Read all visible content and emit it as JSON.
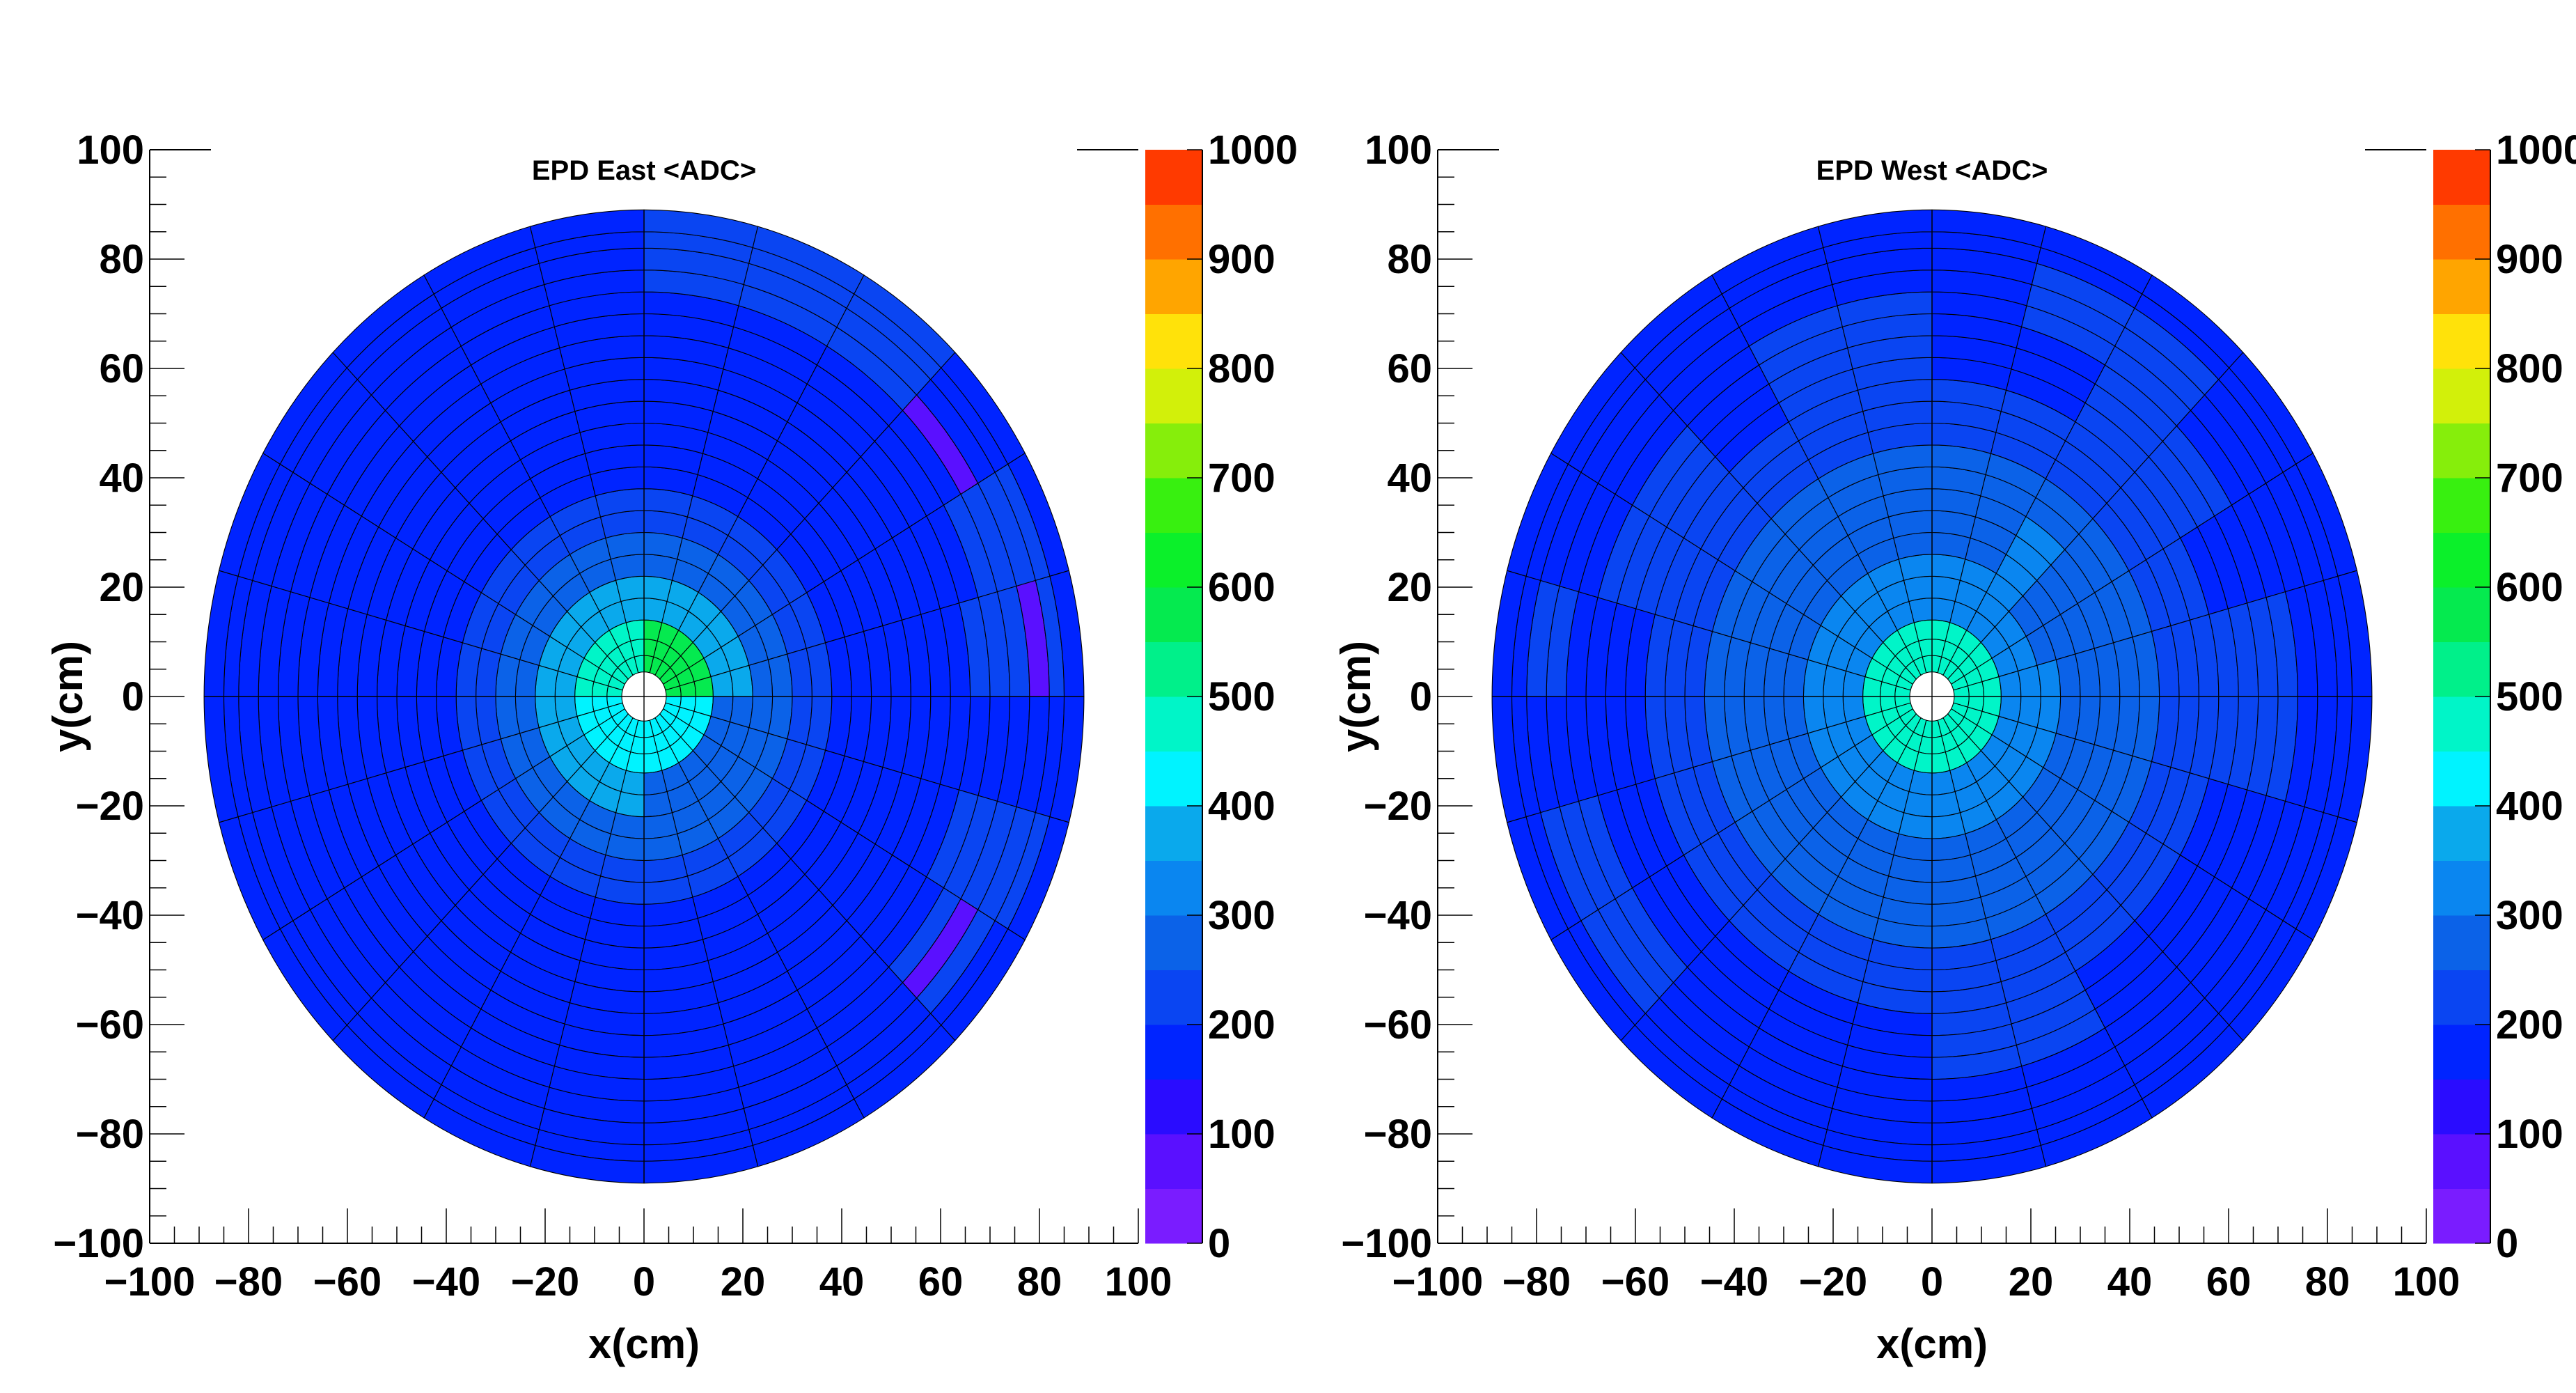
{
  "chart_data": [
    {
      "type": "heatmap",
      "title": "EPD East <ADC>",
      "xlabel": "x(cm)",
      "ylabel": "y(cm)",
      "xlim": [
        -100,
        100
      ],
      "ylim": [
        -100,
        100
      ],
      "xticks": [
        "−100",
        "−80",
        "−60",
        "−40",
        "−20",
        "0",
        "20",
        "40",
        "60",
        "80",
        "100"
      ],
      "yticks": [
        "100",
        "80",
        "60",
        "40",
        "20",
        "0",
        "−20",
        "−40",
        "−60",
        "−80",
        "−100"
      ],
      "zlim": [
        0,
        1000
      ],
      "zticks": [
        "0",
        "100",
        "200",
        "300",
        "400",
        "500",
        "600",
        "700",
        "800",
        "900",
        "1000"
      ],
      "grid": false,
      "radial_edges_cm": [
        4.5,
        7.5,
        10.5,
        14,
        18,
        22,
        26,
        30,
        34,
        38,
        42,
        46,
        50,
        54,
        58,
        62,
        66,
        70,
        74,
        78,
        82,
        85,
        89
      ],
      "sectors": 12,
      "sector_start_deg": 90,
      "sector_direction": "clockwise",
      "subsectors_per_sector": 2,
      "background_adc": 170,
      "cells": [
        {
          "r": [
            0,
            3
          ],
          "s": [
            0,
            24
          ],
          "adc": 560
        },
        {
          "r": [
            3,
            5
          ],
          "s": [
            0,
            24
          ],
          "adc": 370
        },
        {
          "r": [
            5,
            7
          ],
          "s": [
            0,
            24
          ],
          "adc": 290
        },
        {
          "r": [
            7,
            9
          ],
          "s": [
            0,
            24
          ],
          "adc": 240
        },
        {
          "r": [
            0,
            3
          ],
          "s": [
            6,
            12
          ],
          "adc": 420
        },
        {
          "r": [
            3,
            5
          ],
          "s": [
            6,
            12
          ],
          "adc": 280
        },
        {
          "r": [
            0,
            3
          ],
          "s": [
            12,
            18
          ],
          "adc": 440
        },
        {
          "r": [
            0,
            3
          ],
          "s": [
            18,
            24
          ],
          "adc": 470
        },
        {
          "r": [
            18,
            23
          ],
          "s": [
            0,
            2
          ],
          "adc": 220
        },
        {
          "r": [
            18,
            23
          ],
          "s": [
            2,
            3
          ],
          "adc": 200
        },
        {
          "r": [
            18,
            19
          ],
          "s": [
            3,
            4
          ],
          "adc": 80
        },
        {
          "r": [
            17,
            21
          ],
          "s": [
            4,
            6
          ],
          "adc": 220
        },
        {
          "r": [
            16,
            21
          ],
          "s": [
            5,
            6
          ],
          "adc": 200
        },
        {
          "r": [
            16,
            21
          ],
          "s": [
            7,
            8
          ],
          "adc": 220
        },
        {
          "r": [
            19,
            20
          ],
          "s": [
            5,
            6
          ],
          "adc": 60
        },
        {
          "r": [
            17,
            20
          ],
          "s": [
            8,
            9
          ],
          "adc": 220
        },
        {
          "r": [
            18,
            19
          ],
          "s": [
            8,
            9
          ],
          "adc": 60
        }
      ]
    },
    {
      "type": "heatmap",
      "title": "EPD West <ADC>",
      "xlabel": "x(cm)",
      "ylabel": "y(cm)",
      "xlim": [
        -100,
        100
      ],
      "ylim": [
        -100,
        100
      ],
      "xticks": [
        "−100",
        "−80",
        "−60",
        "−40",
        "−20",
        "0",
        "20",
        "40",
        "60",
        "80",
        "100"
      ],
      "yticks": [
        "100",
        "80",
        "60",
        "40",
        "20",
        "0",
        "−20",
        "−40",
        "−60",
        "−80",
        "−100"
      ],
      "zlim": [
        0,
        1000
      ],
      "zticks": [
        "0",
        "100",
        "200",
        "300",
        "400",
        "500",
        "600",
        "700",
        "800",
        "900",
        "1000"
      ],
      "grid": false,
      "radial_edges_cm": [
        4.5,
        7.5,
        10.5,
        14,
        18,
        22,
        26,
        30,
        34,
        38,
        42,
        46,
        50,
        54,
        58,
        62,
        66,
        70,
        74,
        78,
        82,
        85,
        89
      ],
      "sectors": 12,
      "sector_start_deg": 90,
      "sector_direction": "clockwise",
      "subsectors_per_sector": 2,
      "background_adc": 170,
      "cells": [
        {
          "r": [
            0,
            3
          ],
          "s": [
            0,
            24
          ],
          "adc": 480
        },
        {
          "r": [
            3,
            6
          ],
          "s": [
            0,
            24
          ],
          "adc": 320
        },
        {
          "r": [
            6,
            11
          ],
          "s": [
            0,
            24
          ],
          "adc": 260
        },
        {
          "r": [
            11,
            14
          ],
          "s": [
            0,
            24
          ],
          "adc": 230
        },
        {
          "r": [
            14,
            17
          ],
          "s": [
            2,
            4
          ],
          "adc": 230
        },
        {
          "r": [
            17,
            20
          ],
          "s": [
            1,
            3
          ],
          "adc": 230
        },
        {
          "r": [
            14,
            18
          ],
          "s": [
            5,
            7
          ],
          "adc": 230
        },
        {
          "r": [
            14,
            17
          ],
          "s": [
            10,
            12
          ],
          "adc": 230
        },
        {
          "r": [
            17,
            20
          ],
          "s": [
            15,
            17
          ],
          "adc": 230
        },
        {
          "r": [
            14,
            17
          ],
          "s": [
            19,
            21
          ],
          "adc": 230
        },
        {
          "r": [
            14,
            18
          ],
          "s": [
            22,
            24
          ],
          "adc": 230
        },
        {
          "r": [
            18,
            20
          ],
          "s": [
            18,
            19
          ],
          "adc": 230
        },
        {
          "r": [
            5,
            10
          ],
          "s": [
            3,
            5
          ],
          "adc": 290
        },
        {
          "r": [
            5,
            9
          ],
          "s": [
            2,
            3
          ],
          "adc": 300
        }
      ]
    }
  ]
}
